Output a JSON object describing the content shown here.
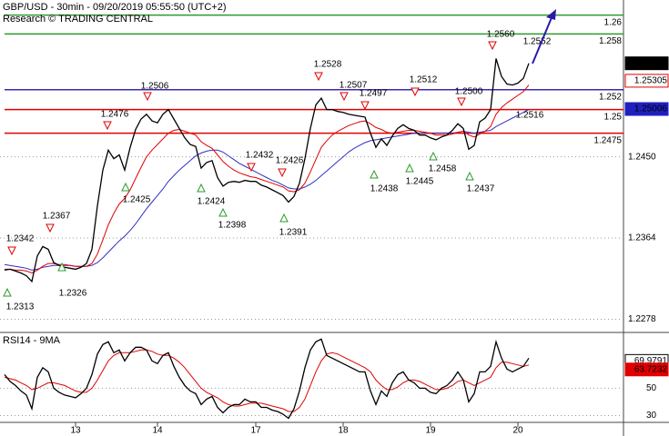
{
  "chart_data": [
    {
      "type": "line",
      "title": "GBP/USD - 30min - 09/20/2019 05:55:50 (UTC+2)",
      "subtitle": "Research © TRADING CENTRAL",
      "categories": [
        null,
        null,
        null,
        null,
        null,
        null,
        null,
        null,
        null,
        null,
        null,
        null,
        null,
        "13",
        null,
        null,
        null,
        null,
        null,
        null,
        null,
        null,
        null,
        null,
        null,
        null,
        null,
        null,
        "14",
        null,
        null,
        null,
        null,
        null,
        null,
        null,
        null,
        null,
        null,
        null,
        null,
        null,
        null,
        null,
        null,
        null,
        "17",
        null,
        null,
        null,
        null,
        null,
        null,
        null,
        null,
        null,
        null,
        null,
        null,
        null,
        null,
        null,
        "18",
        null,
        null,
        null,
        null,
        null,
        null,
        null,
        null,
        null,
        null,
        null,
        null,
        null,
        null,
        null,
        "19",
        null,
        null,
        null,
        null,
        null,
        null,
        null,
        null,
        null,
        null,
        null,
        null,
        null,
        null,
        null,
        "20",
        null,
        null
      ],
      "series": [
        {
          "color": "#000000",
          "values": [
            1.233,
            1.2331,
            1.2329,
            1.2327,
            1.2324,
            1.2318,
            1.2345,
            1.2355,
            1.2352,
            1.2338,
            1.2335,
            1.2333,
            1.2332,
            1.2331,
            1.2333,
            1.2337,
            1.2352,
            1.2398,
            1.2436,
            1.2457,
            1.2448,
            1.2452,
            1.2436,
            1.246,
            1.2479,
            1.249,
            1.2495,
            1.2488,
            1.2486,
            1.2495,
            1.25,
            1.249,
            1.248,
            1.247,
            1.2463,
            1.2461,
            1.2438,
            1.2444,
            1.2446,
            1.2428,
            1.2419,
            1.2423,
            1.2424,
            1.2423,
            1.2425,
            1.2424,
            1.2424,
            1.242,
            1.2418,
            1.2415,
            1.2412,
            1.2409,
            1.2402,
            1.2408,
            1.2422,
            1.2448,
            1.248,
            1.2505,
            1.2512,
            1.25,
            1.25,
            1.2498,
            1.2497,
            1.2495,
            1.2494,
            1.2493,
            1.2492,
            1.2475,
            1.246,
            1.2469,
            1.2462,
            1.2472,
            1.248,
            1.2484,
            1.248,
            1.2478,
            1.2473,
            1.2473,
            1.247,
            1.2468,
            1.2471,
            1.2473,
            1.2478,
            1.2485,
            1.248,
            1.2458,
            1.2462,
            1.2487,
            1.2491,
            1.25,
            1.2554,
            1.2535,
            1.2527,
            1.2526,
            1.2528,
            1.2533,
            1.2549
          ]
        },
        {
          "color": "#e00000",
          "values": [
            1.2331,
            1.2331,
            1.233,
            1.233,
            1.2329,
            1.2327,
            1.233,
            1.2334,
            1.2337,
            1.2337,
            1.2336,
            1.2336,
            1.2335,
            1.2334,
            1.2334,
            1.2334,
            1.2337,
            1.2347,
            1.2362,
            1.2378,
            1.239,
            1.24,
            1.2406,
            1.2415,
            1.2427,
            1.2439,
            1.245,
            1.2457,
            1.2463,
            1.2469,
            1.2475,
            1.2478,
            1.2479,
            1.2477,
            1.2475,
            1.2473,
            1.2466,
            1.2462,
            1.2459,
            1.2452,
            1.2445,
            1.244,
            1.2436,
            1.2433,
            1.2431,
            1.2429,
            1.2428,
            1.2426,
            1.2424,
            1.2422,
            1.242,
            1.2418,
            1.2414,
            1.2413,
            1.2415,
            1.2422,
            1.2434,
            1.2447,
            1.246,
            1.2467,
            1.2473,
            1.2477,
            1.248,
            1.2483,
            1.2485,
            1.2487,
            1.2488,
            1.2485,
            1.2481,
            1.2479,
            1.2476,
            1.2475,
            1.2476,
            1.2477,
            1.2478,
            1.2478,
            1.2477,
            1.2476,
            1.2475,
            1.2473,
            1.2473,
            1.2473,
            1.2474,
            1.2476,
            1.2477,
            1.2473,
            1.2471,
            1.2474,
            1.2477,
            1.2482,
            1.2495,
            1.2502,
            1.2507,
            1.2511,
            1.2515,
            1.2519,
            1.2526
          ]
        },
        {
          "color": "#3030c0",
          "values": [
            1.2336,
            1.2335,
            1.2334,
            1.2333,
            1.2332,
            1.233,
            1.2331,
            1.2333,
            1.2334,
            1.2335,
            1.2335,
            1.2335,
            1.2335,
            1.2334,
            1.2334,
            1.2334,
            1.2335,
            1.2338,
            1.2343,
            1.2349,
            1.2355,
            1.2361,
            1.2366,
            1.2372,
            1.2379,
            1.2387,
            1.2395,
            1.2402,
            1.2409,
            1.2416,
            1.2424,
            1.243,
            1.2436,
            1.2441,
            1.2446,
            1.2451,
            1.2454,
            1.2456,
            1.2457,
            1.2457,
            1.2455,
            1.2451,
            1.2447,
            1.2443,
            1.244,
            1.2437,
            1.2434,
            1.2431,
            1.2428,
            1.2425,
            1.2423,
            1.242,
            1.2417,
            1.2416,
            1.2416,
            1.2418,
            1.2421,
            1.2425,
            1.243,
            1.2435,
            1.244,
            1.2445,
            1.245,
            1.2455,
            1.2459,
            1.2462,
            1.2465,
            1.2467,
            1.2468,
            1.2469,
            1.247,
            1.2471,
            1.2472,
            1.2473,
            1.2474,
            1.2475,
            1.2475,
            1.2475,
            1.2475,
            1.2475,
            1.2475,
            1.2475,
            1.2475,
            1.2476,
            1.2477,
            1.2476,
            1.2475,
            1.2476,
            1.2477,
            1.2478,
            1.2482,
            1.2485,
            1.2488,
            1.2491,
            1.2494,
            1.2497,
            1.25
          ]
        }
      ],
      "ylim": [
        1.2265,
        1.2616
      ],
      "yticks": [
        {
          "value": 1.245,
          "label": "1.2450"
        },
        1.2364,
        1.2278
      ],
      "grid": true,
      "levels": [
        {
          "value": 1.26,
          "color": "#2e9a2e"
        },
        {
          "value": 1.258,
          "color": "#2e9a2e"
        },
        {
          "value": 1.2521,
          "label": "1.252",
          "color": "#3a2ab0"
        },
        {
          "value": 1.25,
          "color": "#e00000"
        },
        {
          "value": 1.2475,
          "color": "#e00000"
        }
      ],
      "price_tags": [
        {
          "value": 1.2549,
          "color": "#000000",
          "style": "filled"
        },
        {
          "value": 1.25305,
          "color": "#e00000",
          "style": "outline"
        },
        {
          "value": 1.25006,
          "color": "#2020c0",
          "style": "filled"
        }
      ],
      "annotations": [
        {
          "label": "1.2342",
          "marker": "down"
        },
        {
          "label": "1.2313",
          "marker": "up"
        },
        {
          "label": "1.2367",
          "marker": "down"
        },
        {
          "label": "1.2326",
          "marker": "up"
        },
        {
          "label": "1.2476",
          "marker": "down"
        },
        {
          "label": "1.2425",
          "marker": "up"
        },
        {
          "label": "1.2506",
          "marker": "down"
        },
        {
          "label": "1.2424",
          "marker": "up"
        },
        {
          "label": "1.2398",
          "marker": "up"
        },
        {
          "label": "1.2432",
          "marker": "down"
        },
        {
          "label": "1.2426",
          "marker": "down"
        },
        {
          "label": "1.2391",
          "marker": "up"
        },
        {
          "label": "1.2528",
          "marker": "down"
        },
        {
          "label": "1.2507",
          "marker": "down"
        },
        {
          "label": "1.2497",
          "marker": "down"
        },
        {
          "label": "1.2438",
          "marker": "up"
        },
        {
          "label": "1.2512",
          "marker": "down"
        },
        {
          "label": "1.2445",
          "marker": "up"
        },
        {
          "label": "1.2458",
          "marker": "up"
        },
        {
          "label": "1.2500",
          "marker": "down"
        },
        {
          "label": "1.2437",
          "marker": "up"
        },
        {
          "label": "1.2560",
          "marker": "down"
        },
        {
          "label": "1.2552",
          "marker": "none"
        },
        {
          "label": "1.2516",
          "marker": "none"
        }
      ]
    },
    {
      "type": "line",
      "title": "RSI14 - 9MA",
      "series": [
        {
          "color": "#000000",
          "values": [
            60,
            55,
            52,
            48,
            45,
            35,
            58,
            65,
            62,
            50,
            47,
            45,
            44,
            43,
            46,
            50,
            60,
            75,
            82,
            84,
            76,
            78,
            70,
            76,
            80,
            80,
            78,
            70,
            68,
            74,
            76,
            66,
            58,
            52,
            48,
            46,
            38,
            42,
            44,
            36,
            32,
            36,
            38,
            38,
            42,
            40,
            40,
            36,
            36,
            34,
            33,
            31,
            28,
            35,
            48,
            65,
            78,
            84,
            86,
            74,
            72,
            70,
            68,
            66,
            64,
            62,
            62,
            48,
            38,
            48,
            44,
            54,
            60,
            62,
            56,
            54,
            50,
            50,
            47,
            46,
            50,
            52,
            56,
            62,
            56,
            40,
            46,
            62,
            62,
            66,
            84,
            72,
            64,
            62,
            64,
            66,
            72
          ]
        },
        {
          "color": "#e00000",
          "values": [
            58,
            57,
            56,
            54,
            52,
            49,
            50,
            52,
            54,
            54,
            53,
            52,
            50,
            48,
            47,
            47,
            50,
            56,
            63,
            70,
            74,
            76,
            76,
            76,
            77,
            78,
            78,
            77,
            75,
            74,
            74,
            72,
            69,
            65,
            60,
            55,
            50,
            47,
            45,
            43,
            40,
            38,
            37,
            37,
            38,
            39,
            39,
            39,
            38,
            37,
            36,
            35,
            33,
            33,
            36,
            42,
            52,
            62,
            70,
            75,
            76,
            75,
            73,
            71,
            69,
            67,
            65,
            62,
            56,
            52,
            49,
            49,
            51,
            54,
            56,
            56,
            55,
            53,
            51,
            49,
            49,
            50,
            52,
            55,
            56,
            54,
            52,
            54,
            56,
            58,
            65,
            69,
            69,
            68,
            67,
            66,
            67
          ]
        }
      ],
      "ylim": [
        25,
        89.5
      ],
      "yticks": [
        30,
        50
      ],
      "tags": [
        {
          "value": 69.9791,
          "color": "#000000",
          "style": "outline"
        },
        {
          "value": 63.7232,
          "color": "#e00000",
          "style": "filled"
        }
      ]
    }
  ]
}
